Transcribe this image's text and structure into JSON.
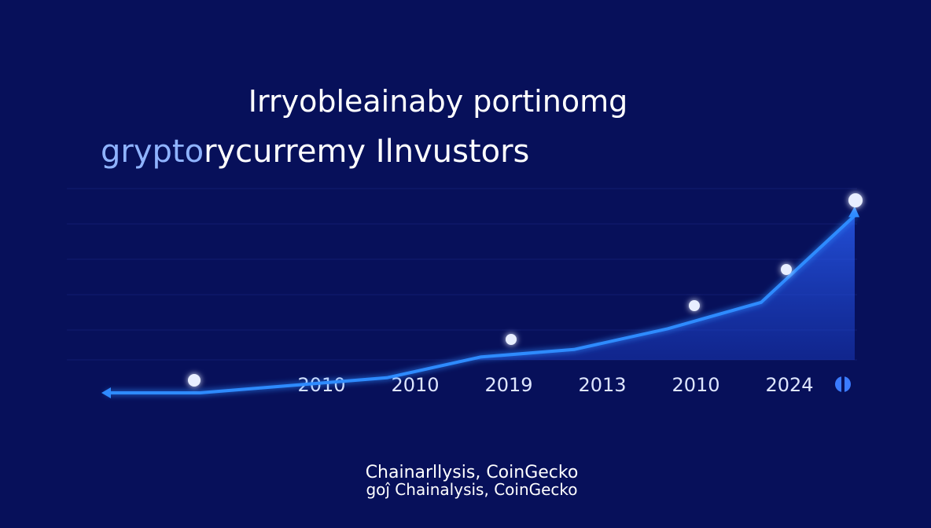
{
  "chart_data": {
    "type": "line",
    "title": "Irryobleainaby portinomg",
    "subtitle_parts": [
      "grypto",
      "rycurremy Ilnvustors"
    ],
    "categories": [
      null,
      null,
      "2010",
      "2010",
      "2019",
      "2013",
      "2010",
      "2024",
      null
    ],
    "series": [
      {
        "color": "#2f8bff",
        "values": [
          0,
          0,
          4,
          8,
          19,
          23,
          34,
          48,
          94
        ]
      }
    ],
    "ylim": [
      0,
      100
    ],
    "sources": [
      "Chainarllysis, CoinGecko",
      "goĵ Chainalysis, CoinGecko"
    ]
  }
}
